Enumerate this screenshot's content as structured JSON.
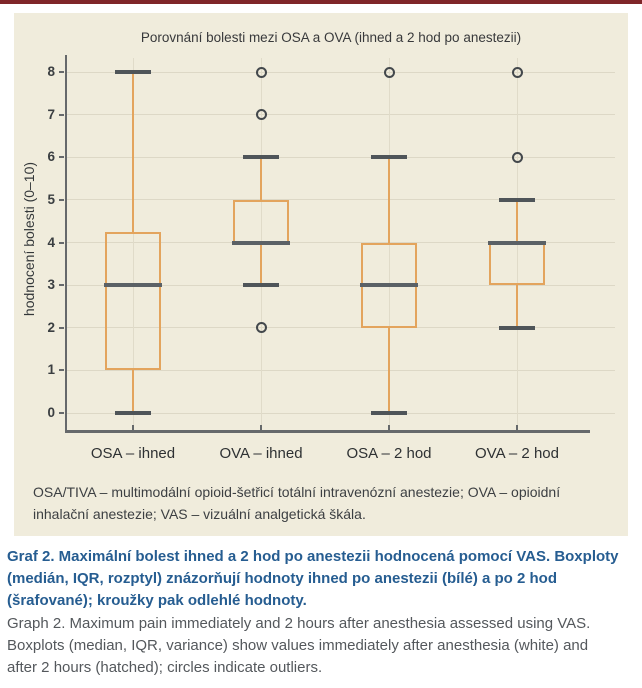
{
  "figure": {
    "top_rule_color": "#7f2629",
    "panel_bg": "#f0ecdc"
  },
  "chart_data": {
    "type": "boxplot",
    "title": "Porovnání bolesti mezi OSA a OVA (ihned a 2 hod po anestezii)",
    "ylabel": "hodnocení bolesti (0–10)",
    "ylim": [
      0,
      8
    ],
    "yticks": [
      8,
      7,
      6,
      5,
      4,
      3,
      2,
      1,
      0
    ],
    "grid": true,
    "legend": "none",
    "categories": [
      "OSA – ihned",
      "OVA – ihned",
      "OSA – 2 hod",
      "OVA – 2 hod"
    ],
    "series": [
      {
        "name": "OSA – ihned",
        "whisker_low": 0,
        "q1": 1,
        "median": 3,
        "q3": 4.25,
        "whisker_high": 8,
        "outliers": []
      },
      {
        "name": "OVA – ihned",
        "whisker_low": 3,
        "q1": 4,
        "median": 4,
        "q3": 5,
        "whisker_high": 6,
        "outliers": [
          8,
          7,
          2
        ]
      },
      {
        "name": "OSA – 2 hod",
        "whisker_low": 0,
        "q1": 2,
        "median": 3,
        "q3": 4,
        "whisker_high": 6,
        "outliers": [
          8
        ]
      },
      {
        "name": "OVA – 2 hod",
        "whisker_low": 2,
        "q1": 3,
        "median": 4,
        "q3": 4,
        "whisker_high": 5,
        "outliers": [
          8,
          6
        ]
      }
    ],
    "colors": {
      "box_stroke": "#e3a45d",
      "median": "#5b6166",
      "whisker_cap": "#4f5559",
      "outlier_ring": "#43484c",
      "axis": "#66696b",
      "grid": "#ddd8c6",
      "grid_v": "#e0dbc9"
    }
  },
  "footnote": {
    "text": "OSA/TIVA – multimodální opioid-šetřicí totální intravenózní anestezie; OVA – opioidní inhalační anestezie; VAS – vizuální analgetická škála."
  },
  "captions": {
    "czech": "Graf 2. Maximální bolest ihned a 2 hod po anestezii hodnocená pomocí VAS. Boxploty (medián, IQR, rozptyl) znázorňují hodnoty ihned po anestezii (bílé) a po 2 hod (šrafované); kroužky pak odlehlé hodnoty.",
    "english": "Graph 2. Maximum pain immediately and 2 hours after anesthesia assessed using VAS. Boxplots (median, IQR, variance) show values immediately after anesthesia (white) and after 2 hours (hatched); circles indicate outliers."
  }
}
